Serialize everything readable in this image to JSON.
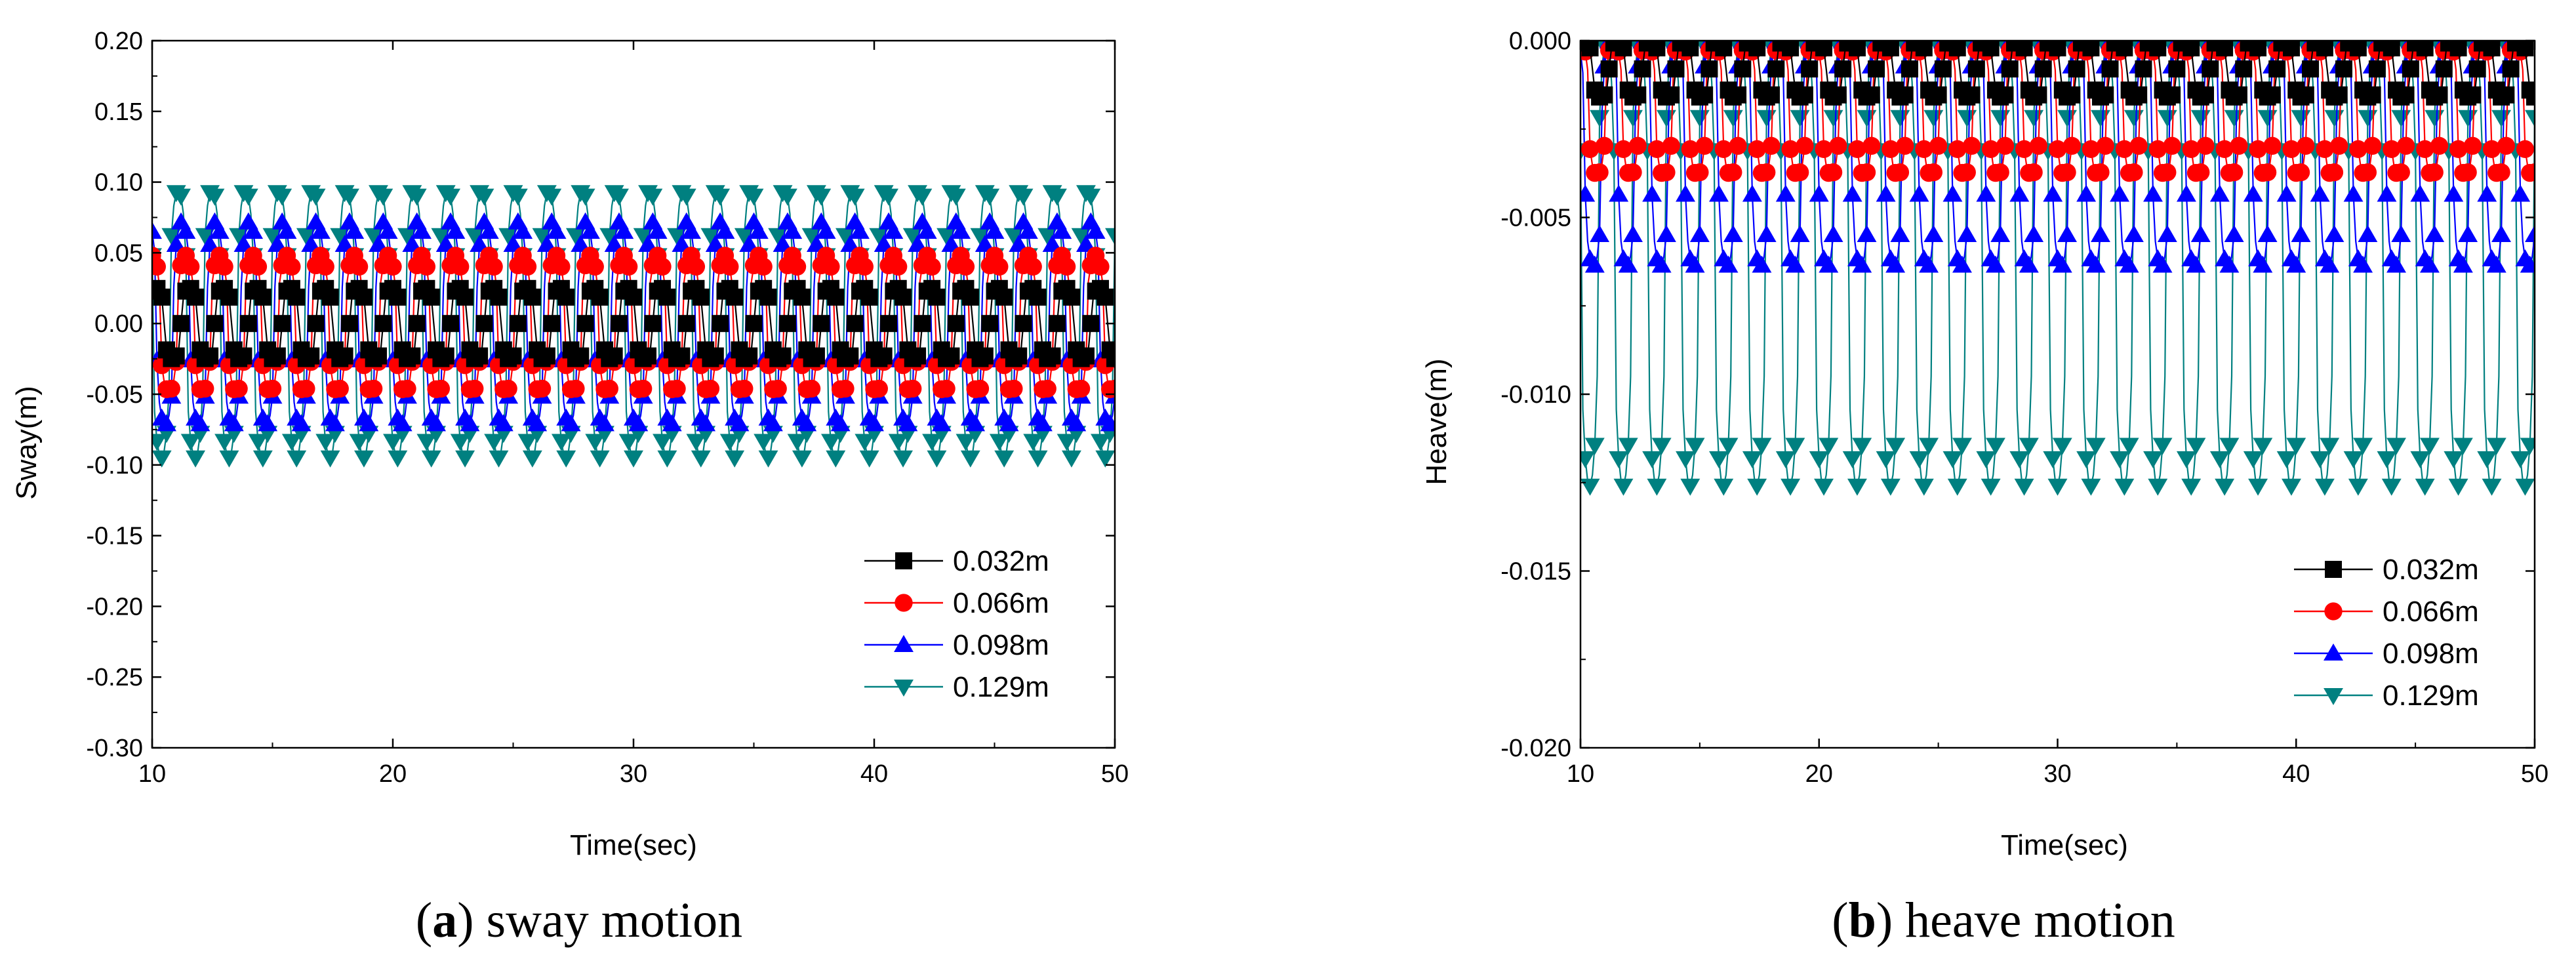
{
  "chart_data": [
    {
      "id": "a",
      "type": "line",
      "caption_letter": "a",
      "caption_text": "sway motion",
      "xlabel": "Time(sec)",
      "ylabel": "Sway(m)",
      "xlim": [
        10,
        50
      ],
      "ylim": [
        -0.3,
        0.2
      ],
      "xticks": [
        "10",
        "20",
        "30",
        "40",
        "50"
      ],
      "yticks": [
        "0.20",
        "0.15",
        "0.10",
        "0.05",
        "0.00",
        "-0.05",
        "-0.10",
        "-0.15",
        "-0.20",
        "-0.25",
        "-0.30"
      ],
      "ytick_values": [
        0.2,
        0.15,
        0.1,
        0.05,
        0.0,
        -0.05,
        -0.1,
        -0.15,
        -0.2,
        -0.25,
        -0.3
      ],
      "wave_period_sec": 1.4,
      "legend_position": "bottom-right",
      "series": [
        {
          "name": "0.032m",
          "color": "#000000",
          "marker": "square",
          "mean": 0.0,
          "amplitude": 0.025
        },
        {
          "name": "0.066m",
          "color": "#ff0000",
          "marker": "circle",
          "mean": 0.0,
          "amplitude": 0.048
        },
        {
          "name": "0.098m",
          "color": "#0000ff",
          "marker": "triangle-up",
          "mean": 0.0,
          "amplitude": 0.072
        },
        {
          "name": "0.129m",
          "color": "#008080",
          "marker": "triangle-down",
          "mean": 0.0,
          "amplitude": 0.095
        }
      ]
    },
    {
      "id": "b",
      "type": "line",
      "caption_letter": "b",
      "caption_text": "heave motion",
      "xlabel": "Time(sec)",
      "ylabel": "Heave(m)",
      "xlim": [
        10,
        50
      ],
      "ylim": [
        -0.02,
        0.0
      ],
      "xticks": [
        "10",
        "20",
        "30",
        "40",
        "50"
      ],
      "yticks": [
        "0.000",
        "-0.005",
        "-0.010",
        "-0.015",
        "-0.020"
      ],
      "ytick_values": [
        0.0,
        -0.005,
        -0.01,
        -0.015,
        -0.02
      ],
      "wave_period_sec": 1.4,
      "legend_position": "bottom-right",
      "series": [
        {
          "name": "0.032m",
          "color": "#000000",
          "marker": "square",
          "mean": -0.0008,
          "amplitude": 0.0008
        },
        {
          "name": "0.066m",
          "color": "#ff0000",
          "marker": "circle",
          "mean": -0.0019,
          "amplitude": 0.0019
        },
        {
          "name": "0.098m",
          "color": "#0000ff",
          "marker": "triangle-up",
          "mean": -0.0032,
          "amplitude": 0.0032
        },
        {
          "name": "0.129m",
          "color": "#008080",
          "marker": "triangle-down",
          "mean": -0.0063,
          "amplitude": 0.0063
        }
      ]
    }
  ]
}
